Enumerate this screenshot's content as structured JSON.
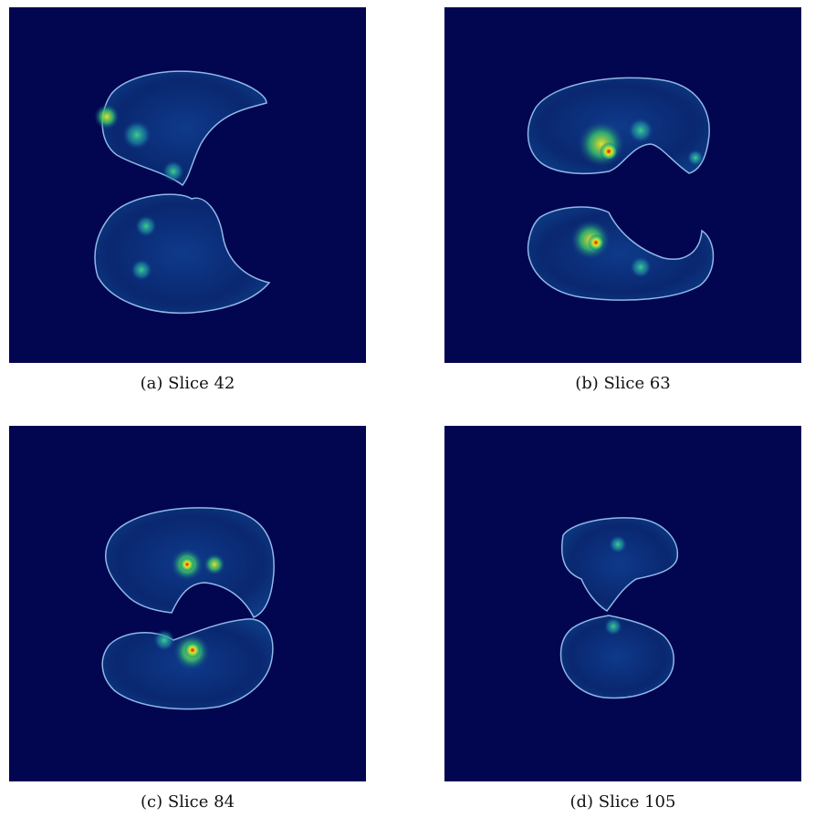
{
  "panels": [
    {
      "id": "a",
      "caption": "(a) Slice 42"
    },
    {
      "id": "b",
      "caption": "(b) Slice 63"
    },
    {
      "id": "c",
      "caption": "(c) Slice 84"
    },
    {
      "id": "d",
      "caption": "(d) Slice 105"
    }
  ],
  "colors": {
    "background": "#020550",
    "lung_fill": "#0a2a7a",
    "lung_edge": "#8fb8e8",
    "hot_low": "#19c27a",
    "hot_mid": "#e8e02a",
    "hot_high": "#d21a0c"
  }
}
